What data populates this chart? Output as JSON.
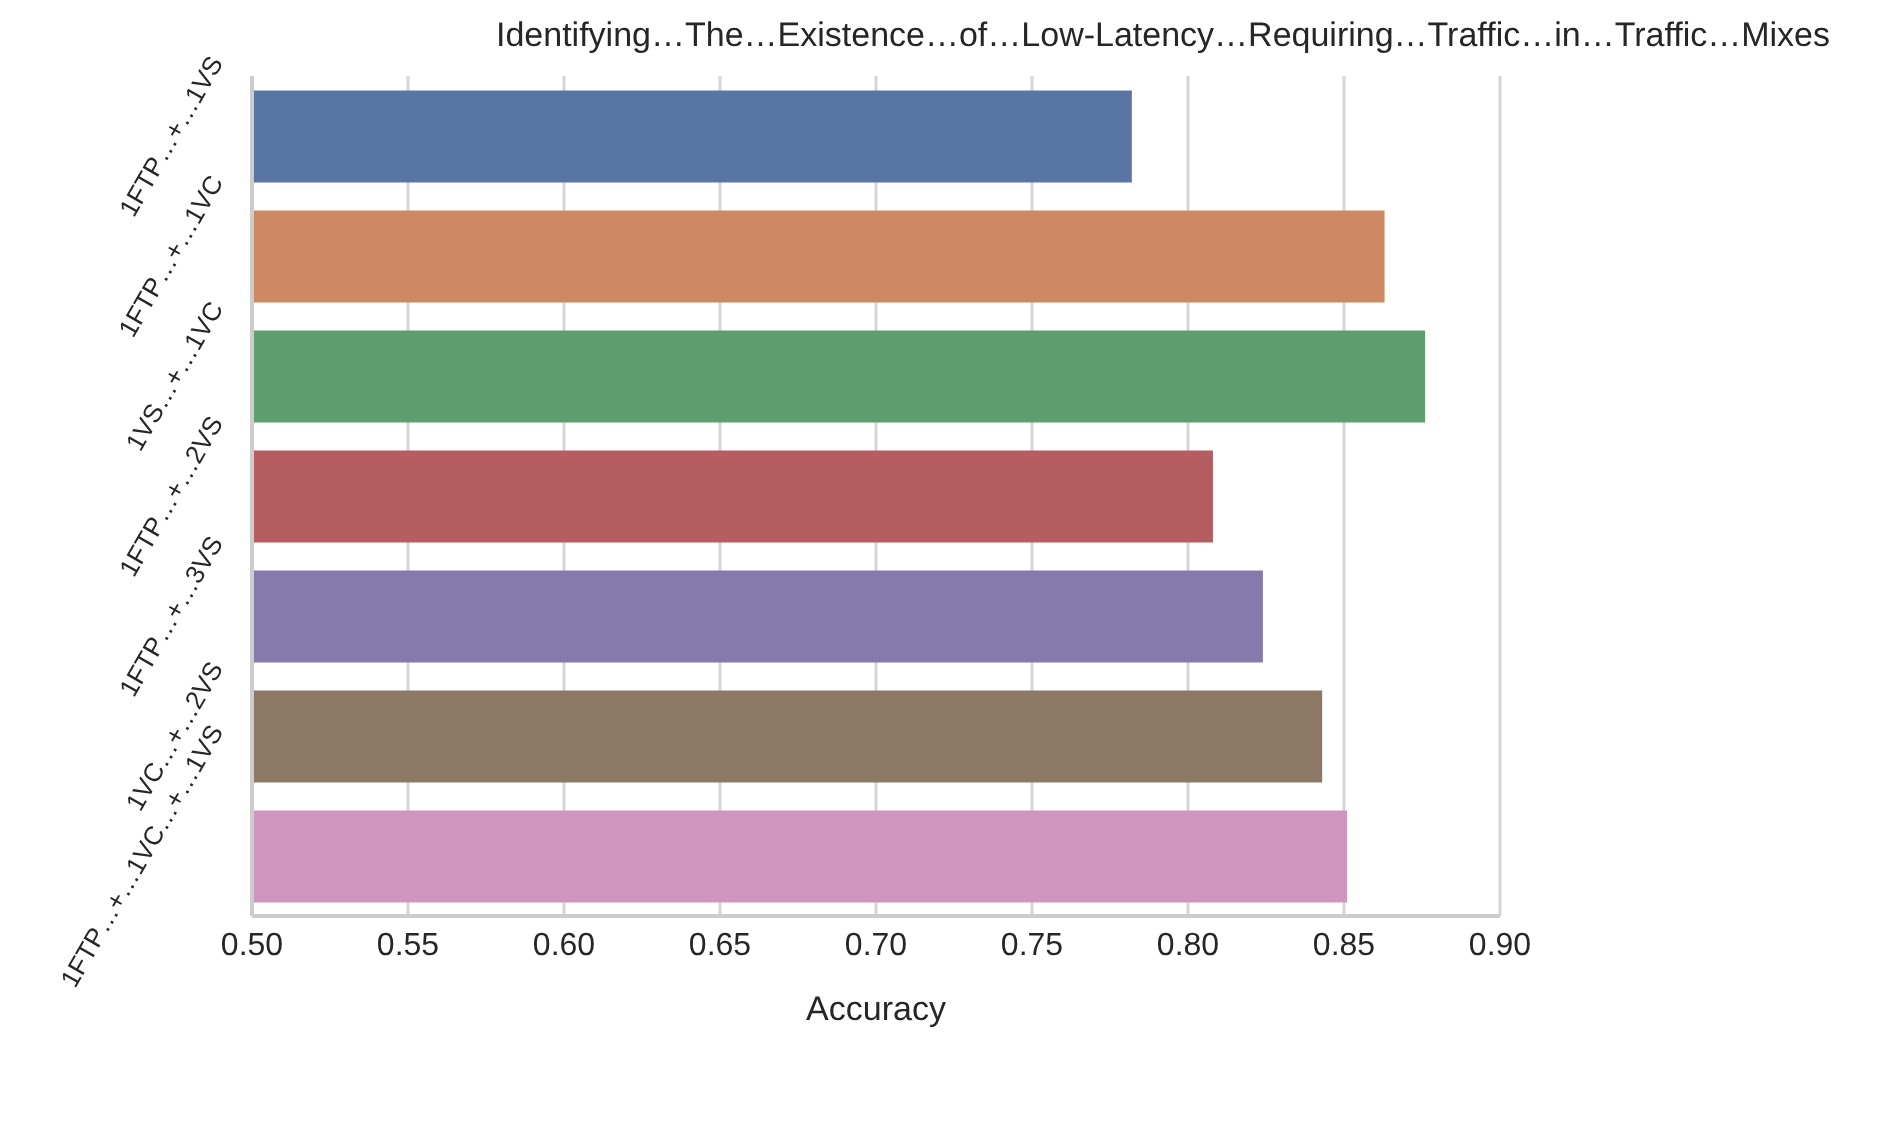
{
  "chart_data": {
    "type": "bar",
    "orientation": "horizontal",
    "title": "Identifying…The…Existence…of…Low-Latency…Requiring…Traffic…in…Traffic…Mixes",
    "xlabel": "Accuracy",
    "categories": [
      "1FTP…+…1VS",
      "1FTP…+…1VC",
      "1VS…+…1VC",
      "1FTP…+…2VS",
      "1FTP…+…3VS",
      "1VC…+…2VS",
      "1FTP…+…1VC…+…1VS"
    ],
    "values": [
      0.782,
      0.863,
      0.876,
      0.808,
      0.824,
      0.843,
      0.851
    ],
    "colors": [
      "#5975a4",
      "#cc8963",
      "#5f9e6e",
      "#b55d60",
      "#857aab",
      "#8d7866",
      "#d095bf"
    ],
    "xlim": [
      0.5,
      0.9
    ],
    "xticks": [
      {
        "value": 0.5,
        "label": "0.50"
      },
      0.55,
      {
        "value": 0.6,
        "label": "0.60"
      },
      0.65,
      {
        "value": 0.7,
        "label": "0.70"
      },
      0.75,
      {
        "value": 0.8,
        "label": "0.80"
      },
      0.85,
      {
        "value": 0.9,
        "label": "0.90"
      }
    ],
    "grid": "x"
  }
}
